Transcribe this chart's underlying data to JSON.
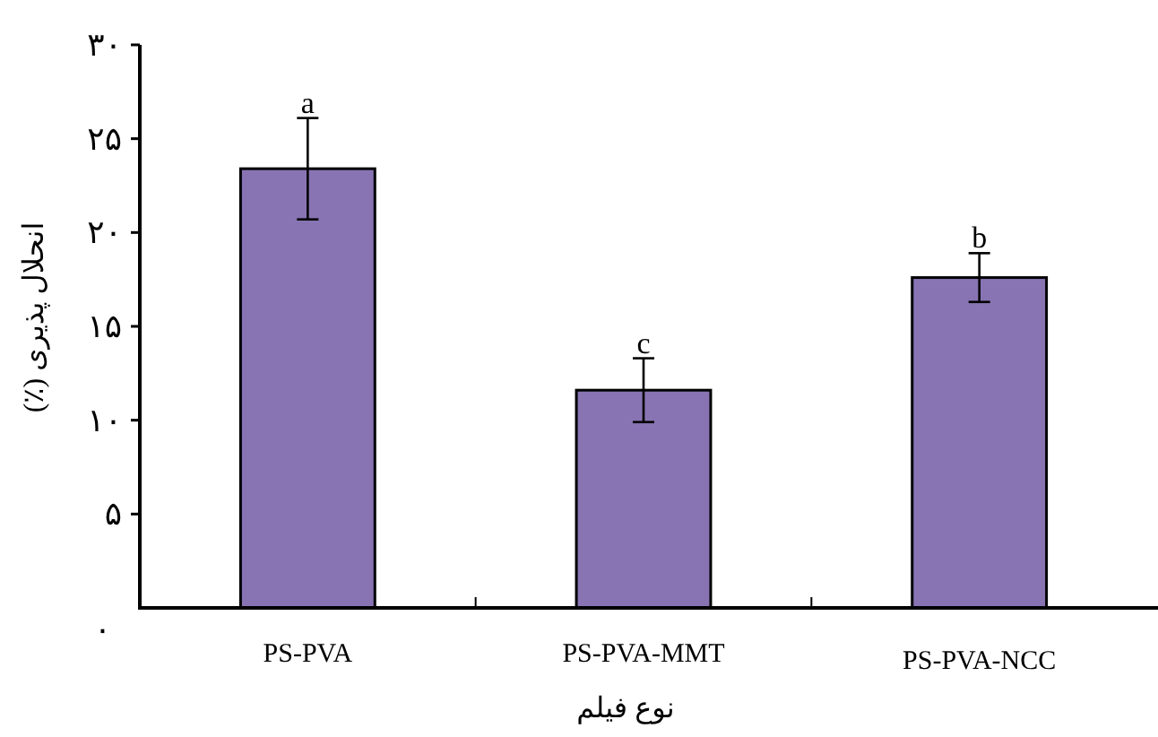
{
  "chart_data": {
    "type": "bar",
    "xlabel": "نوع فیلم",
    "ylabel": "انحلال پذیری (٪)",
    "categories": [
      "PS-PVA",
      "PS-PVA-MMT",
      "PS-PVA-NCC"
    ],
    "values": [
      23.4,
      11.6,
      17.6
    ],
    "errors": [
      2.7,
      1.7,
      1.3
    ],
    "color": "#8874b3",
    "ylim": [
      0,
      30
    ],
    "yticks": [
      {
        "value": 0,
        "label": "۰"
      },
      {
        "value": 5,
        "label": "۵"
      },
      {
        "value": 10,
        "label": "۱۰"
      },
      {
        "value": 15,
        "label": "۱۵"
      },
      {
        "value": 20,
        "label": "۲۰"
      },
      {
        "value": 25,
        "label": "۲۵"
      },
      {
        "value": 30,
        "label": "۳۰"
      }
    ],
    "annotations": [
      {
        "text": "a",
        "x": "PS-PVA",
        "y": 26.1
      },
      {
        "text": "c",
        "x": "PS-PVA-MMT",
        "y": 13.3
      },
      {
        "text": "b",
        "x": "PS-PVA-NCC",
        "y": 18.9
      }
    ]
  }
}
